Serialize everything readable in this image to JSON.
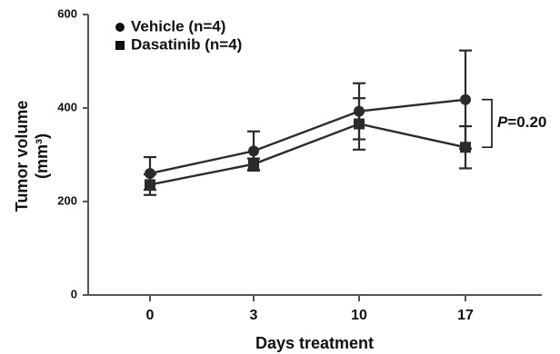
{
  "chart_data": {
    "type": "line",
    "xlabel": "Days treatment",
    "ylabel": "Tumor volume",
    "ylabel_unit": "(mm³)",
    "categories": [
      "0",
      "3",
      "10",
      "17"
    ],
    "ylim": [
      0,
      600
    ],
    "yticks": [
      "0",
      "200",
      "400",
      "600"
    ],
    "grid": false,
    "legend_position": "top-left",
    "series": [
      {
        "name": "Vehicle (n=4)",
        "marker": "circle",
        "values": [
          260,
          308,
          393,
          418
        ],
        "error": [
          35,
          42,
          60,
          105
        ]
      },
      {
        "name": "Dasatinib (n=4)",
        "marker": "square",
        "values": [
          236,
          280,
          366,
          316
        ],
        "error": [
          22,
          12,
          55,
          45
        ]
      }
    ],
    "annotation": {
      "p_label": "P",
      "p_value": "=0.20",
      "at_category": "17"
    },
    "colors": {
      "line": "#2b2b2b",
      "axis": "#555555",
      "text": "#111111"
    }
  }
}
